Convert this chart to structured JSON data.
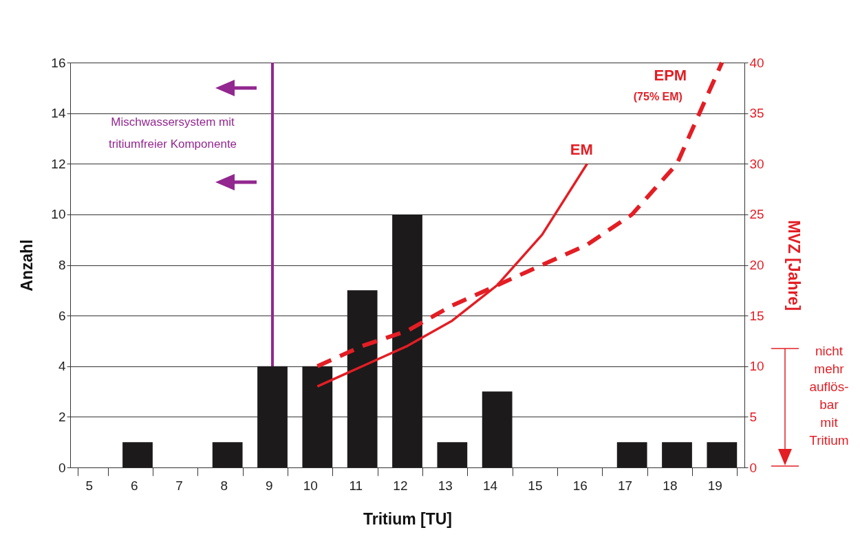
{
  "chart_data": {
    "type": "bar",
    "xlabel": "Tritium [TU]",
    "ylabel": "Anzahl",
    "y2label": "MVZ [Jahre]",
    "categories": [
      "5",
      "6",
      "7",
      "8",
      "9",
      "10",
      "11",
      "12",
      "13",
      "14",
      "15",
      "16",
      "17",
      "18",
      "19"
    ],
    "values": [
      0,
      1,
      0,
      1,
      4,
      4,
      7,
      10,
      1,
      3,
      0,
      0,
      1,
      1,
      1
    ],
    "color": "#1c1a1b",
    "ylim": [
      0,
      16
    ],
    "yticks": [
      0,
      2,
      4,
      6,
      8,
      10,
      12,
      14,
      16
    ],
    "y2lim": [
      0,
      40
    ],
    "y2ticks": [
      0,
      5,
      10,
      15,
      20,
      25,
      30,
      35,
      40
    ],
    "grid": "y",
    "series": [
      {
        "name": "EM",
        "type": "line",
        "axis": "y2",
        "color": "#e31e24",
        "line_style": "solid",
        "x": [
          "10",
          "11",
          "12",
          "13",
          "14",
          "15",
          "16"
        ],
        "values": [
          8,
          10,
          12,
          14.5,
          18,
          23,
          30
        ]
      },
      {
        "name": "EPM",
        "type": "line",
        "axis": "y2",
        "color": "#e31e24",
        "line_style": "dashed",
        "x": [
          "10",
          "11",
          "12",
          "13",
          "14",
          "15",
          "16",
          "17",
          "18",
          "19"
        ],
        "values": [
          10,
          12,
          13.5,
          16,
          18,
          20,
          22,
          25,
          30,
          40
        ]
      }
    ],
    "ref_lines": [
      {
        "axis": "x",
        "value": "9",
        "label": "Mischwassersystem mit tritiumfreier Komponente",
        "color": "#92278f"
      }
    ],
    "annotations": [
      "(75% EM)",
      "nicht mehr auflös- bar mit Tritium"
    ]
  }
}
